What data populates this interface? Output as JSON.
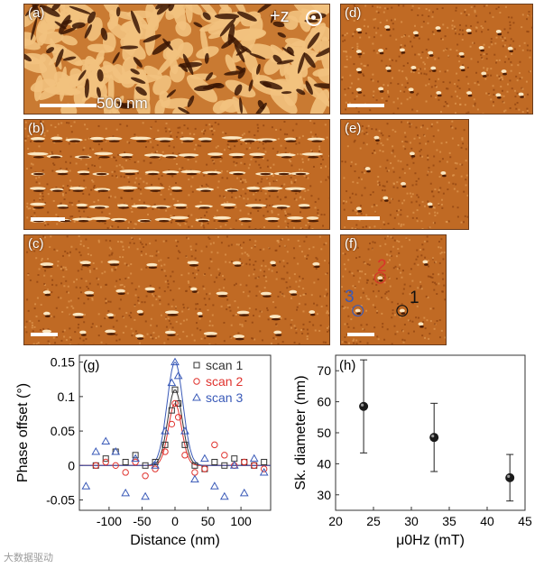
{
  "panels": {
    "a": {
      "label": "(a)",
      "scale_text": "500 nm",
      "z_text": "+z"
    },
    "b": {
      "label": "(b)"
    },
    "c": {
      "label": "(c)"
    },
    "d": {
      "label": "(d)"
    },
    "e": {
      "label": "(e)"
    },
    "f": {
      "label": "(f)",
      "markers": [
        "1",
        "2",
        "3"
      ]
    }
  },
  "colors": {
    "scan1": "#333333",
    "scan2": "#e0332e",
    "scan3": "#3a5ab8",
    "afm_dark": "#8a3d0c",
    "afm_light": "#f0b777"
  },
  "chart_data": [
    {
      "type": "scatter",
      "panel_label": "(g)",
      "xlabel": "Distance (nm)",
      "ylabel": "Phase offset (°)",
      "xlim": [
        -145,
        145
      ],
      "ylim": [
        -0.065,
        0.16
      ],
      "xticks": [
        "-100",
        "-50",
        "0",
        "50",
        "100"
      ],
      "yticks": [
        "-0.05",
        "0",
        "0.05",
        "0.1",
        "0.15"
      ],
      "legend_position": "top-right",
      "series": [
        {
          "name": "scan 1",
          "marker": "square",
          "x": [
            -120,
            -105,
            -90,
            -75,
            -60,
            -45,
            -30,
            -15,
            -5,
            0,
            5,
            15,
            30,
            45,
            60,
            75,
            90,
            105,
            120,
            135
          ],
          "y": [
            0.0,
            0.01,
            0.02,
            0.005,
            0.015,
            0.0,
            0.005,
            0.03,
            0.08,
            0.11,
            0.09,
            0.03,
            0.0,
            -0.005,
            0.005,
            0.0,
            0.01,
            0.005,
            0.0,
            0.005
          ]
        },
        {
          "name": "scan 2",
          "marker": "circle",
          "x": [
            -120,
            -105,
            -90,
            -75,
            -60,
            -45,
            -30,
            -15,
            -5,
            0,
            5,
            15,
            30,
            45,
            60,
            75,
            90,
            105,
            120,
            135
          ],
          "y": [
            0.0,
            0.005,
            0.0,
            -0.01,
            0.005,
            -0.015,
            -0.005,
            0.02,
            0.06,
            0.09,
            0.07,
            0.015,
            -0.01,
            -0.005,
            0.03,
            0.015,
            0.0,
            0.005,
            0.0,
            -0.005
          ]
        },
        {
          "name": "scan 3",
          "marker": "triangle",
          "x": [
            -135,
            -120,
            -105,
            -90,
            -75,
            -60,
            -45,
            -30,
            -15,
            -5,
            0,
            5,
            15,
            30,
            45,
            60,
            75,
            90,
            105,
            120,
            135
          ],
          "y": [
            -0.03,
            0.02,
            0.035,
            0.02,
            -0.04,
            0.01,
            -0.045,
            0.0,
            0.05,
            0.12,
            0.15,
            0.13,
            0.05,
            -0.02,
            0.01,
            -0.03,
            -0.045,
            0.0,
            -0.04,
            0.01,
            -0.01
          ]
        }
      ],
      "fits": [
        {
          "series": "scan 1",
          "amp": 0.11,
          "sigma": 11
        },
        {
          "series": "scan 2",
          "amp": 0.09,
          "sigma": 10
        },
        {
          "series": "scan 3",
          "amp": 0.15,
          "sigma": 12
        }
      ]
    },
    {
      "type": "scatter",
      "panel_label": "(h)",
      "xlabel": "μ0Hz (mT)",
      "ylabel": "Sk. diameter (nm)",
      "xlim": [
        20,
        45
      ],
      "ylim": [
        25,
        75
      ],
      "xticks": [
        "20",
        "25",
        "30",
        "35",
        "40",
        "45"
      ],
      "yticks": [
        "30",
        "40",
        "50",
        "60",
        "70"
      ],
      "series": [
        {
          "name": "",
          "x": [
            23.7,
            33.0,
            43.0
          ],
          "y": [
            58.5,
            48.5,
            35.5
          ],
          "err": [
            15,
            11,
            7.5
          ]
        }
      ]
    }
  ],
  "watermark": "大数据驱动"
}
